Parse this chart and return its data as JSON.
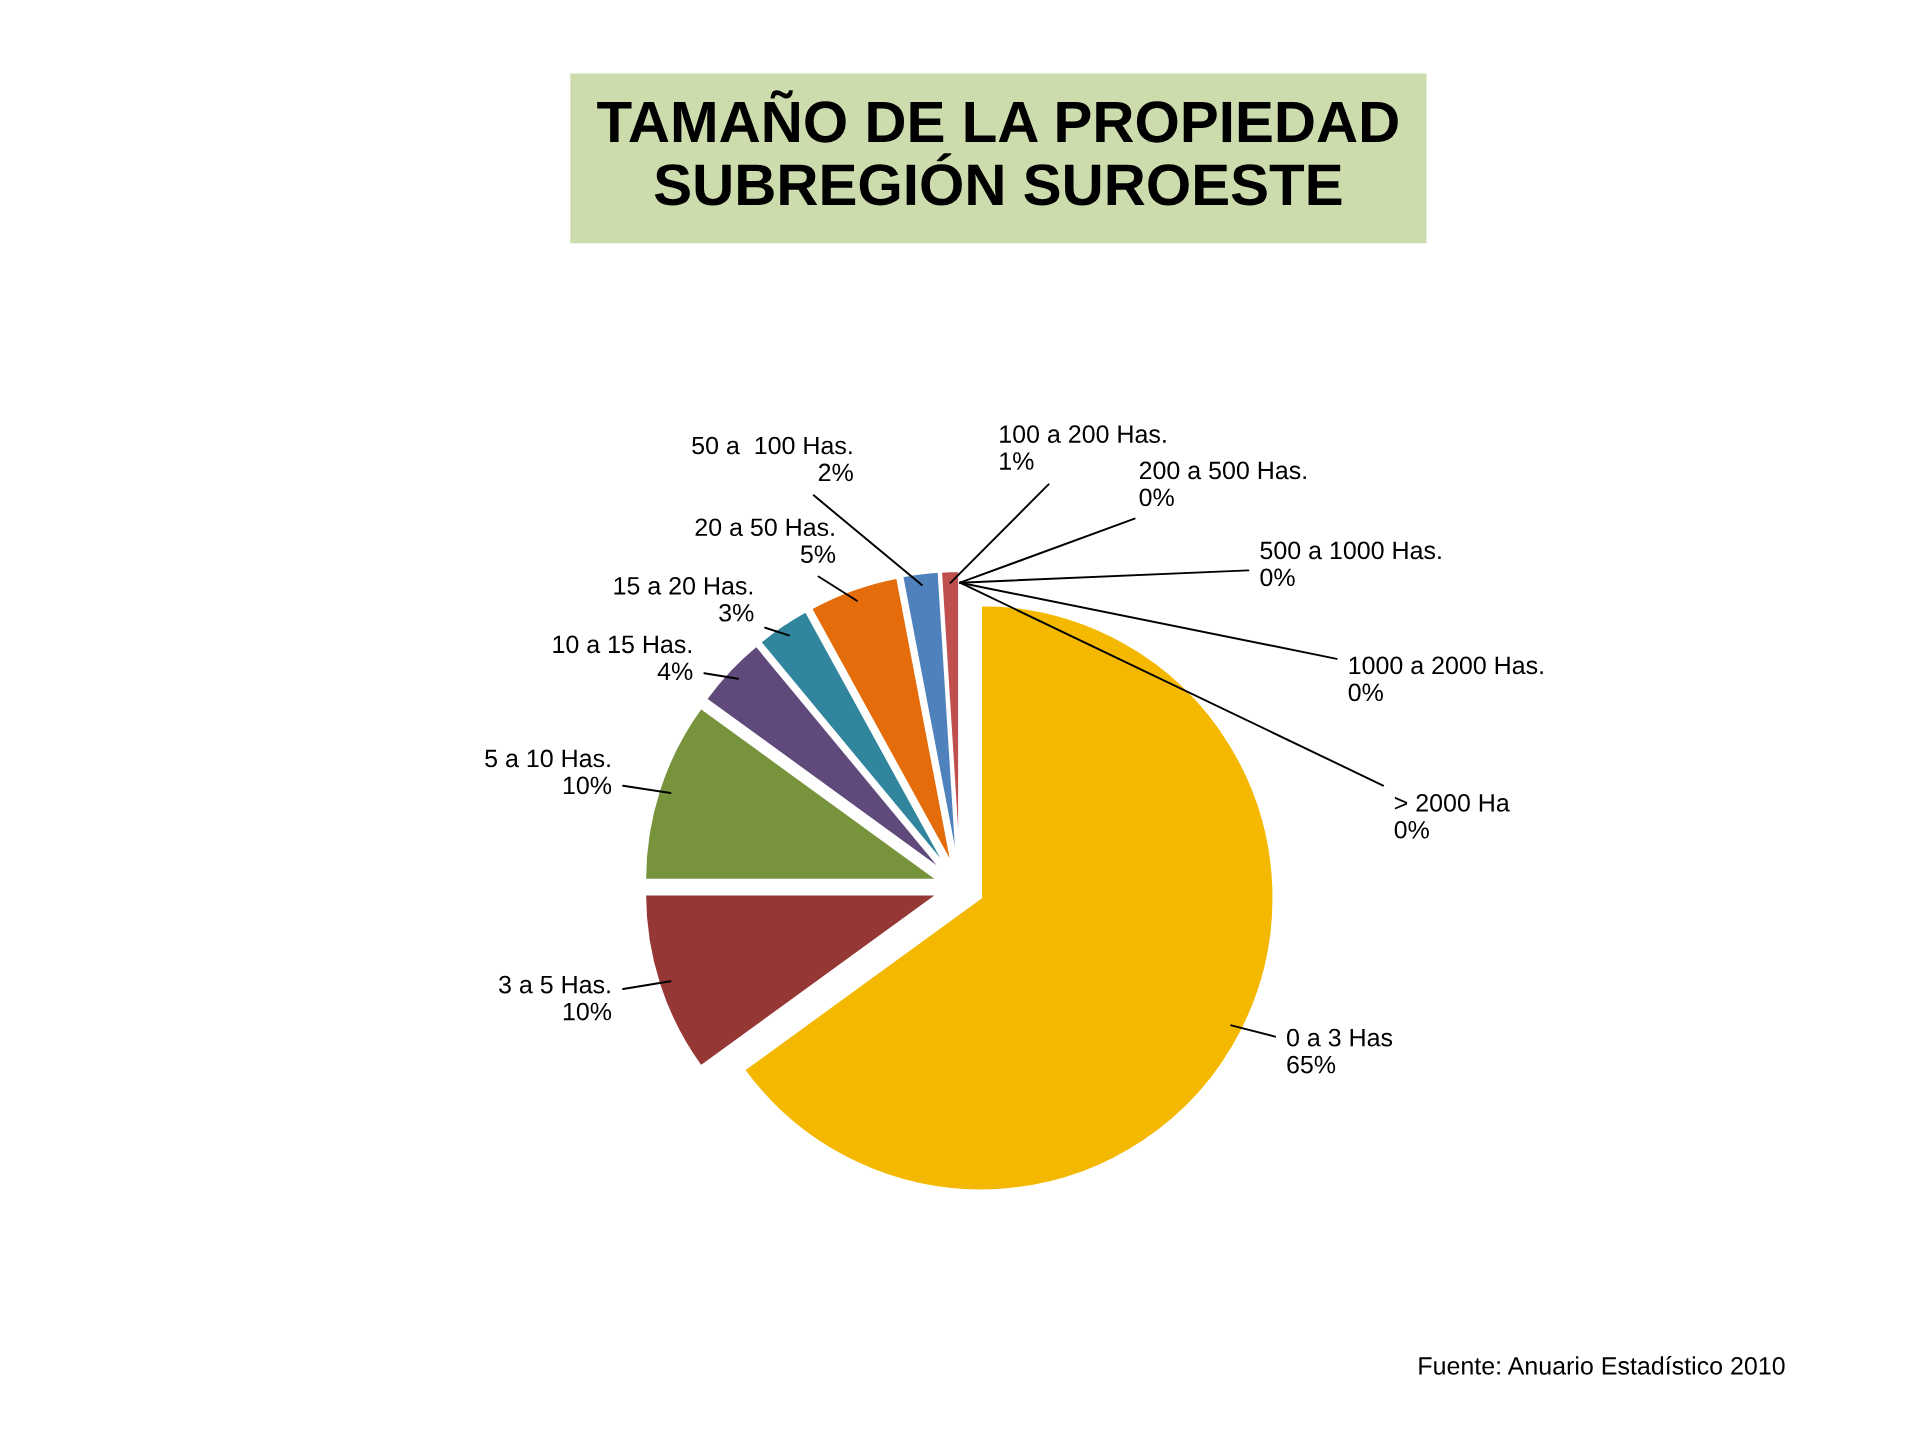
{
  "chart_data": {
    "type": "pie",
    "title": "TAMAÑO DE LA PROPIEDAD\nSUBREGIÓN SUROESTE",
    "categories": [
      "0 a 3 Has",
      "3 a 5 Has.",
      "5 a 10 Has.",
      "10 a 15 Has.",
      "15 a 20 Has.",
      "20 a 50 Has.",
      "50 a  100 Has.",
      "100 a 200 Has.",
      "200 a 500 Has.",
      "500 a 1000 Has.",
      "1000 a 2000 Has.",
      "> 2000 Ha"
    ],
    "values": [
      65,
      10,
      10,
      4,
      3,
      5,
      2,
      1,
      0,
      0,
      0,
      0
    ],
    "value_labels": [
      "65%",
      "10%",
      "10%",
      "4%",
      "3%",
      "5%",
      "2%",
      "1%",
      "0%",
      "0%",
      "0%",
      "0%"
    ],
    "colors": [
      "#f5b800",
      "#953735",
      "#77933c",
      "#604a7b",
      "#31859c",
      "#e46c0a",
      "#4f81bd",
      "#c0504d",
      "#9bbb59",
      "#8064a2",
      "#4bacc6",
      "#f79646"
    ],
    "annotations": [
      "Fuente: Anuario Estadístico 2010"
    ]
  }
}
